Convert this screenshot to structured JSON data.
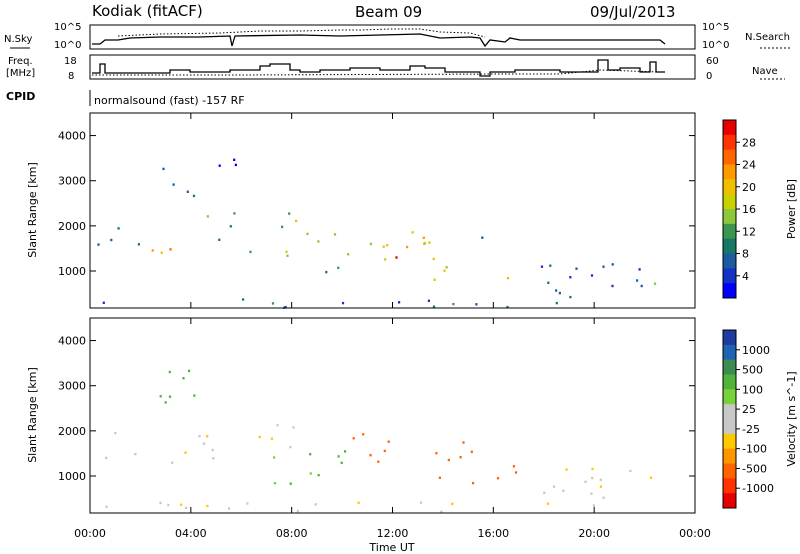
{
  "header": {
    "station": "Kodiak (fitACF)",
    "beam": "Beam 09",
    "date": "09/Jul/2013"
  },
  "top_panels": {
    "nsky_label": "N.Sky",
    "nsearch_label": "N.Search",
    "freq_label_line1": "Freq.",
    "freq_label_line2": "[MHz]",
    "nave_label": "Nave",
    "cpid_label": "CPID",
    "cpid_text": "normalsound (fast) -157 RF",
    "noise_ticks": [
      "10^5",
      "10^0"
    ],
    "freq_ticks": [
      "18",
      "8"
    ],
    "nave_ticks": [
      "60",
      "0"
    ]
  },
  "colorbars": {
    "power": {
      "label": "Power [dB]",
      "ticks": [
        "28",
        "24",
        "20",
        "16",
        "12",
        "8",
        "4"
      ],
      "colors": [
        "#e60000",
        "#ff3300",
        "#ff6600",
        "#ff9900",
        "#f0c000",
        "#c8d200",
        "#8cc83c",
        "#3c9650",
        "#147864",
        "#1e5aa0",
        "#1432c8",
        "#0000ff"
      ]
    },
    "velocity": {
      "label": "Velocity [m s^-1]",
      "ticks": [
        "1000",
        "500",
        "100",
        "25",
        "-25",
        "-100",
        "-500",
        "-1000"
      ],
      "colors": [
        "#1e3ca0",
        "#1e64b4",
        "#3c8c50",
        "#50b43c",
        "#78d23c",
        "#c8c8c8",
        "#c8c8c8",
        "#ffc800",
        "#ff9600",
        "#ff6400",
        "#ff3200",
        "#e60000"
      ]
    }
  },
  "x_axis": {
    "label": "Time UT",
    "ticks": [
      "00:00",
      "04:00",
      "08:00",
      "12:00",
      "16:00",
      "20:00",
      "00:00"
    ]
  },
  "chart_data": [
    {
      "type": "heatmap",
      "ylabel": "Slant Range [km]",
      "xlim": [
        0,
        24
      ],
      "ylim": [
        180,
        4500
      ],
      "yticks": [
        1000,
        2000,
        3000,
        4000
      ],
      "value": "Power [dB]",
      "scale": [
        0,
        30
      ],
      "regions": [
        {
          "x": [
            0.1,
            0.9
          ],
          "y": [
            1300,
            2000
          ],
          "v": 8
        },
        {
          "x": [
            1.0,
            2.8
          ],
          "y": [
            1500,
            2000
          ],
          "v": 10
        },
        {
          "x": [
            2.6,
            4.2
          ],
          "y": [
            2500,
            3300
          ],
          "v": 8
        },
        {
          "x": [
            1.5,
            5.5
          ],
          "y": [
            1300,
            1600
          ],
          "v": 20
        },
        {
          "x": [
            4.2,
            5.8
          ],
          "y": [
            1700,
            2400
          ],
          "v": 10
        },
        {
          "x": [
            6.0,
            7.5
          ],
          "y": [
            1350,
            1600
          ],
          "v": 8
        },
        {
          "x": [
            7.0,
            8.6
          ],
          "y": [
            1300,
            2500
          ],
          "v": 14
        },
        {
          "x": [
            8.0,
            9.0
          ],
          "y": [
            800,
            1200
          ],
          "v": 24
        },
        {
          "x": [
            9.0,
            11.0
          ],
          "y": [
            1000,
            1900
          ],
          "v": 12
        },
        {
          "x": [
            10.5,
            13.5
          ],
          "y": [
            1100,
            2100
          ],
          "v": 18
        },
        {
          "x": [
            11.3,
            12.4
          ],
          "y": [
            1250,
            1500
          ],
          "v": 28
        },
        {
          "x": [
            13.5,
            15.0
          ],
          "y": [
            700,
            1500
          ],
          "v": 18
        },
        {
          "x": [
            14.8,
            15.6
          ],
          "y": [
            1700,
            2300
          ],
          "v": 8
        },
        {
          "x": [
            16.0,
            17.0
          ],
          "y": [
            700,
            1300
          ],
          "v": 20
        },
        {
          "x": [
            17.5,
            22.0
          ],
          "y": [
            500,
            1200
          ],
          "v": 6
        },
        {
          "x": [
            21.0,
            22.4
          ],
          "y": [
            500,
            800
          ],
          "v": 12
        },
        {
          "x": [
            0.5,
            22.5
          ],
          "y": [
            200,
            450
          ],
          "v": 6
        },
        {
          "x": [
            5.0,
            6.5
          ],
          "y": [
            3200,
            3600
          ],
          "v": 4
        }
      ]
    },
    {
      "type": "heatmap",
      "ylabel": "Slant Range [km]",
      "xlim": [
        0,
        24
      ],
      "ylim": [
        180,
        4500
      ],
      "yticks": [
        1000,
        2000,
        3000,
        4000
      ],
      "value": "Velocity [m s^-1]",
      "scale": [
        -1000,
        1000
      ],
      "regions": [
        {
          "x": [
            0.5,
            6.0
          ],
          "y": [
            1300,
            2000
          ],
          "v": 0
        },
        {
          "x": [
            2.5,
            4.5
          ],
          "y": [
            2500,
            3400
          ],
          "v": 150
        },
        {
          "x": [
            6.0,
            8.5
          ],
          "y": [
            1500,
            2300
          ],
          "v": 0
        },
        {
          "x": [
            7.0,
            8.8
          ],
          "y": [
            800,
            1500
          ],
          "v": 80
        },
        {
          "x": [
            8.5,
            10.5
          ],
          "y": [
            1000,
            1800
          ],
          "v": 120
        },
        {
          "x": [
            10.0,
            13.5
          ],
          "y": [
            1100,
            2000
          ],
          "v": -200
        },
        {
          "x": [
            13.5,
            15.5
          ],
          "y": [
            800,
            1800
          ],
          "v": -150
        },
        {
          "x": [
            16.0,
            17.0
          ],
          "y": [
            800,
            1400
          ],
          "v": -150
        },
        {
          "x": [
            17.5,
            22.5
          ],
          "y": [
            400,
            1200
          ],
          "v": 0
        },
        {
          "x": [
            0.5,
            22.5
          ],
          "y": [
            200,
            450
          ],
          "v": 0
        }
      ]
    }
  ]
}
